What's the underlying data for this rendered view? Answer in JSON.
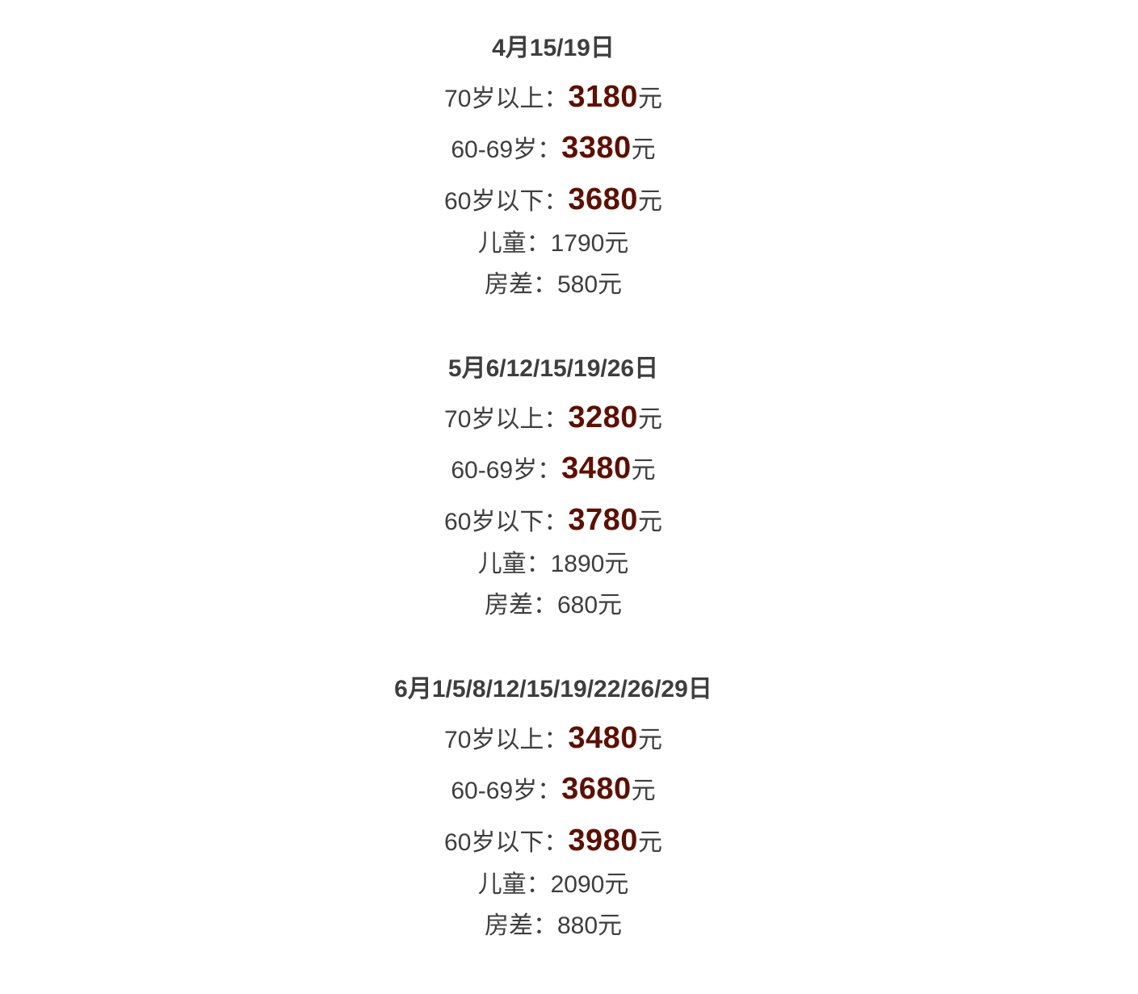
{
  "price_color": "#5c1000",
  "sections": [
    {
      "heading": "4月15/19日",
      "rows": [
        {
          "label": "70岁以上：",
          "price": "3180",
          "unit": "元"
        },
        {
          "label": "60-69岁：",
          "price": "3380",
          "unit": "元"
        },
        {
          "label": "60岁以下：",
          "price": "3680",
          "unit": "元"
        },
        {
          "label": "儿童：",
          "value": "1790元"
        },
        {
          "label": "房差：",
          "value": "580元"
        }
      ]
    },
    {
      "heading": "5月6/12/15/19/26日",
      "rows": [
        {
          "label": "70岁以上：",
          "price": "3280",
          "unit": "元"
        },
        {
          "label": "60-69岁：",
          "price": "3480",
          "unit": "元"
        },
        {
          "label": "60岁以下：",
          "price": "3780",
          "unit": "元"
        },
        {
          "label": "儿童：",
          "value": "1890元"
        },
        {
          "label": "房差：",
          "value": "680元"
        }
      ]
    },
    {
      "heading": "6月1/5/8/12/15/19/22/26/29日",
      "rows": [
        {
          "label": "70岁以上：",
          "price": "3480",
          "unit": "元"
        },
        {
          "label": "60-69岁：",
          "price": "3680",
          "unit": "元"
        },
        {
          "label": "60岁以下：",
          "price": "3980",
          "unit": "元"
        },
        {
          "label": "儿童：",
          "value": "2090元"
        },
        {
          "label": "房差：",
          "value": "880元"
        }
      ]
    }
  ]
}
